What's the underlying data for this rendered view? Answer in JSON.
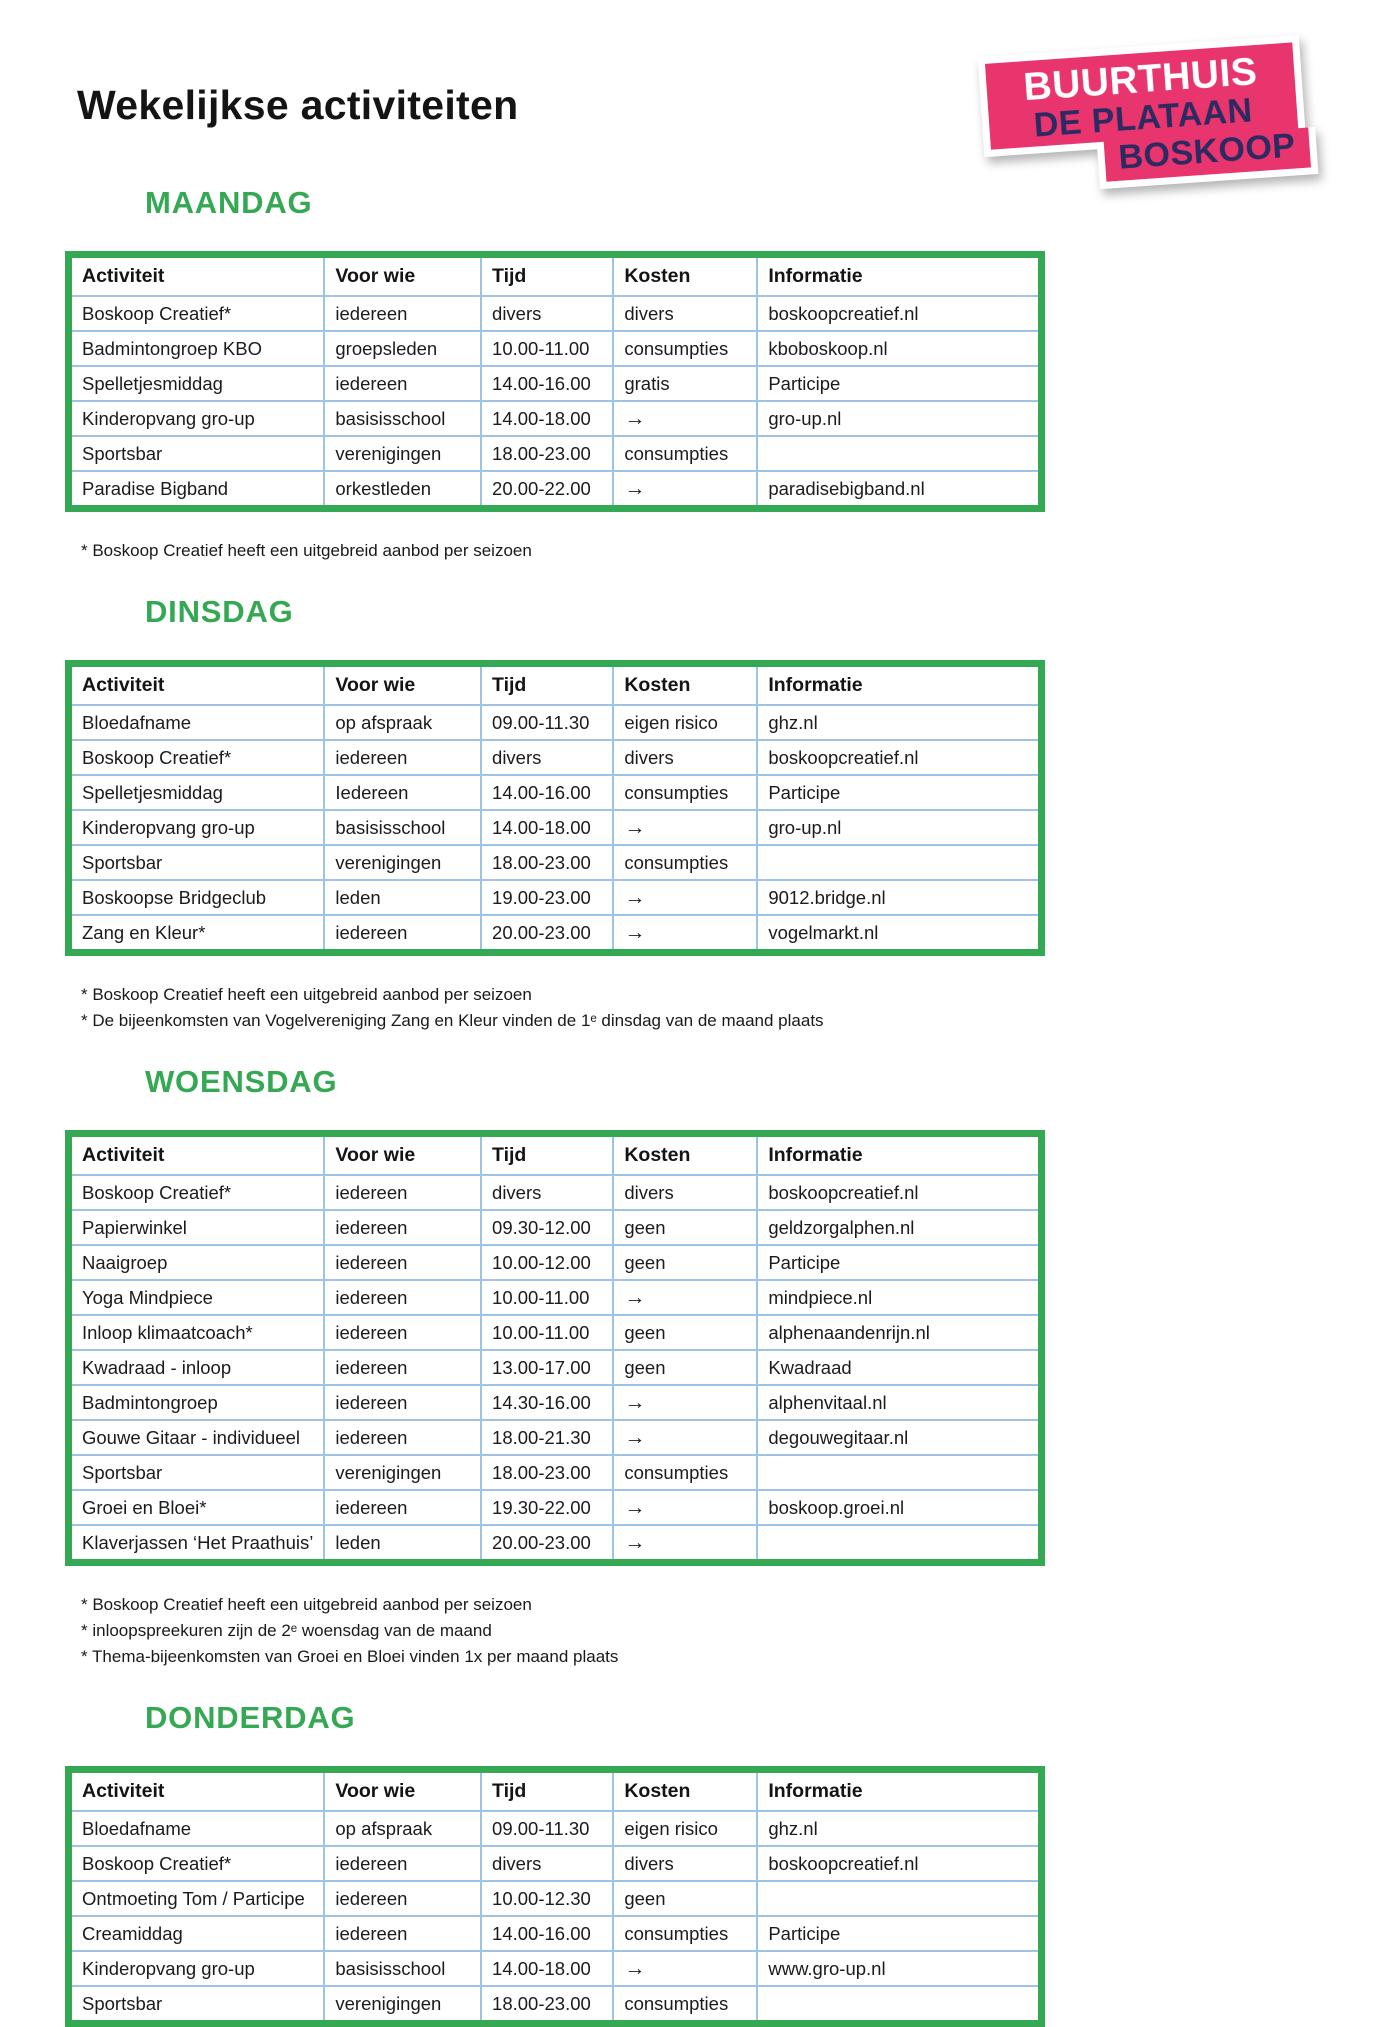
{
  "page": {
    "title": "Wekelijkse activiteiten"
  },
  "logo": {
    "line1": "BUURTHUIS",
    "line2": "DE PLATAAN",
    "line3": "BOSKOOP"
  },
  "colors": {
    "accent_green": "#34A853",
    "cell_border_blue": "#9DC3E6",
    "logo_pink": "#E8356D",
    "logo_navy": "#2D2A62"
  },
  "columns": [
    "Activiteit",
    "Voor wie",
    "Tijd",
    "Kosten",
    "Informatie"
  ],
  "sections": [
    {
      "day": "MAANDAG",
      "rows": [
        [
          "Boskoop Creatief*",
          "iedereen",
          "divers",
          "divers",
          "boskoopcreatief.nl"
        ],
        [
          "Badmintongroep KBO",
          "groepsleden",
          "10.00-11.00",
          "consumpties",
          "kboboskoop.nl"
        ],
        [
          "Spelletjesmiddag",
          "iedereen",
          "14.00-16.00",
          "gratis",
          "Participe"
        ],
        [
          "Kinderopvang gro-up",
          "basisisschool",
          "14.00-18.00",
          "→",
          "gro-up.nl"
        ],
        [
          "Sportsbar",
          "verenigingen",
          "18.00-23.00",
          "consumpties",
          ""
        ],
        [
          "Paradise Bigband",
          "orkestleden",
          "20.00-22.00",
          "→",
          "paradisebigband.nl"
        ]
      ],
      "footnotes": [
        "* Boskoop Creatief heeft een uitgebreid aanbod per seizoen"
      ]
    },
    {
      "day": "DINSDAG",
      "rows": [
        [
          "Bloedafname",
          "op afspraak",
          "09.00-11.30",
          "eigen risico",
          "ghz.nl"
        ],
        [
          "Boskoop Creatief*",
          "iedereen",
          "divers",
          "divers",
          "boskoopcreatief.nl"
        ],
        [
          "Spelletjesmiddag",
          "Iedereen",
          "14.00-16.00",
          "consumpties",
          "Participe"
        ],
        [
          "Kinderopvang gro-up",
          "basisisschool",
          "14.00-18.00",
          "→",
          "gro-up.nl"
        ],
        [
          "Sportsbar",
          "verenigingen",
          "18.00-23.00",
          "consumpties",
          ""
        ],
        [
          "Boskoopse Bridgeclub",
          "leden",
          "19.00-23.00",
          "→",
          "9012.bridge.nl"
        ],
        [
          "Zang en Kleur*",
          "iedereen",
          "20.00-23.00",
          "→",
          "vogelmarkt.nl"
        ]
      ],
      "footnotes": [
        "* Boskoop Creatief heeft een uitgebreid aanbod per seizoen",
        "* De bijeenkomsten van Vogelvereniging Zang en Kleur vinden de 1ᵉ dinsdag van de maand plaats"
      ]
    },
    {
      "day": "WOENSDAG",
      "rows": [
        [
          "Boskoop Creatief*",
          "iedereen",
          "divers",
          "divers",
          "boskoopcreatief.nl"
        ],
        [
          "Papierwinkel",
          "iedereen",
          "09.30-12.00",
          "geen",
          "geldzorgalphen.nl"
        ],
        [
          "Naaigroep",
          "iedereen",
          "10.00-12.00",
          "geen",
          "Participe"
        ],
        [
          "Yoga Mindpiece",
          "iedereen",
          "10.00-11.00",
          "→",
          "mindpiece.nl"
        ],
        [
          "Inloop klimaatcoach*",
          "iedereen",
          "10.00-11.00",
          "geen",
          "alphenaandenrijn.nl"
        ],
        [
          "Kwadraad - inloop",
          "iedereen",
          "13.00-17.00",
          "geen",
          "Kwadraad"
        ],
        [
          "Badmintongroep",
          "iedereen",
          "14.30-16.00",
          "→",
          "alphenvitaal.nl"
        ],
        [
          "Gouwe Gitaar - individueel",
          "iedereen",
          "18.00-21.30",
          "→",
          "degouwegitaar.nl"
        ],
        [
          "Sportsbar",
          "verenigingen",
          "18.00-23.00",
          "consumpties",
          ""
        ],
        [
          "Groei en Bloei*",
          "iedereen",
          "19.30-22.00",
          "→",
          "boskoop.groei.nl"
        ],
        [
          "Klaverjassen ‘Het Praathuis’",
          "leden",
          "20.00-23.00",
          "→",
          ""
        ]
      ],
      "footnotes": [
        "* Boskoop Creatief heeft een uitgebreid aanbod per seizoen",
        "* inloopspreekuren zijn de 2ᵉ woensdag van de maand",
        "* Thema-bijeenkomsten van Groei en Bloei vinden 1x per maand plaats"
      ]
    },
    {
      "day": "DONDERDAG",
      "rows": [
        [
          "Bloedafname",
          "op afspraak",
          "09.00-11.30",
          "eigen risico",
          "ghz.nl"
        ],
        [
          "Boskoop Creatief*",
          "iedereen",
          "divers",
          "divers",
          "boskoopcreatief.nl"
        ],
        [
          "Ontmoeting Tom / Participe",
          "iedereen",
          "10.00-12.30",
          "geen",
          ""
        ],
        [
          "Creamiddag",
          "iedereen",
          "14.00-16.00",
          "consumpties",
          "Participe"
        ],
        [
          "Kinderopvang gro-up",
          "basisisschool",
          "14.00-18.00",
          "→",
          "www.gro-up.nl"
        ],
        [
          "Sportsbar",
          "verenigingen",
          "18.00-23.00",
          "consumpties",
          ""
        ]
      ],
      "footnotes": []
    }
  ]
}
